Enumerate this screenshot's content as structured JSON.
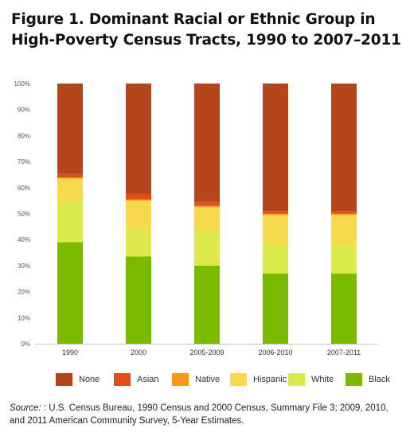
{
  "figure": {
    "title": "Figure 1. Dominant Racial or Ethnic Group in High-Poverty Census Tracts, 1990 to 2007–2011",
    "source_label": "Source:",
    "source_text": " : U.S. Census Bureau, 1990 Census and 2000 Census, Summary File 3; 2009, 2010, and 2011 American Community Survey, 5-Year Estimates."
  },
  "chart_data": {
    "type": "bar",
    "stacked": true,
    "title": "Figure 1. Dominant Racial or Ethnic Group in High-Poverty Census Tracts, 1990 to 2007–2011",
    "xlabel": "",
    "ylabel": "",
    "categories": [
      "1990",
      "2000",
      "2005-2009",
      "2006-2010",
      "2007-2011"
    ],
    "ylim": [
      0,
      100
    ],
    "yticks": [
      "0%",
      "10%",
      "20%",
      "30%",
      "40%",
      "50%",
      "60%",
      "70%",
      "80%",
      "90%",
      "100%"
    ],
    "series": [
      {
        "name": "Black",
        "color": "#7bb800",
        "values": [
          39,
          33.5,
          30,
          27,
          27
        ]
      },
      {
        "name": "White",
        "color": "#dde84a",
        "values": [
          16,
          10.5,
          13,
          11.5,
          11
        ]
      },
      {
        "name": "Hispanic",
        "color": "#f7d94e",
        "values": [
          8.5,
          11,
          9.5,
          11,
          11.5
        ]
      },
      {
        "name": "Native",
        "color": "#f39a1c",
        "values": [
          0.4,
          0.5,
          0.5,
          0.5,
          0.5
        ]
      },
      {
        "name": "Asian",
        "color": "#e04e1a",
        "values": [
          1.3,
          2,
          1.5,
          1,
          1
        ]
      },
      {
        "name": "None",
        "color": "#b5461c",
        "values": [
          34.8,
          42.5,
          45.5,
          49,
          49
        ]
      }
    ],
    "legend": {
      "placement": "bottom",
      "order": [
        "None",
        "Asian",
        "Native",
        "Hispanic",
        "White",
        "Black"
      ]
    },
    "grid": false
  }
}
